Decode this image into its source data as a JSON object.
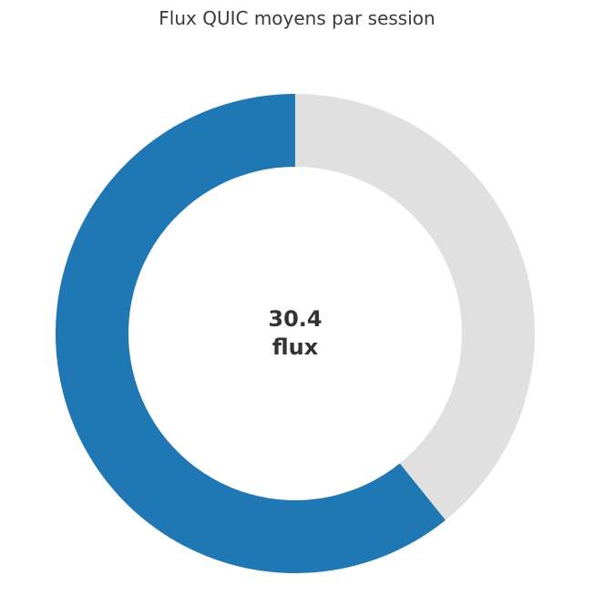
{
  "chart_data": {
    "type": "pie",
    "style": "donut",
    "title": "Flux QUIC moyens par session",
    "center_label": {
      "value": "30.4",
      "unit": "flux"
    },
    "slices": [
      {
        "value": 60.8,
        "color": "#1f77b4"
      },
      {
        "value": 39.2,
        "color": "#e0e0e0"
      }
    ]
  }
}
